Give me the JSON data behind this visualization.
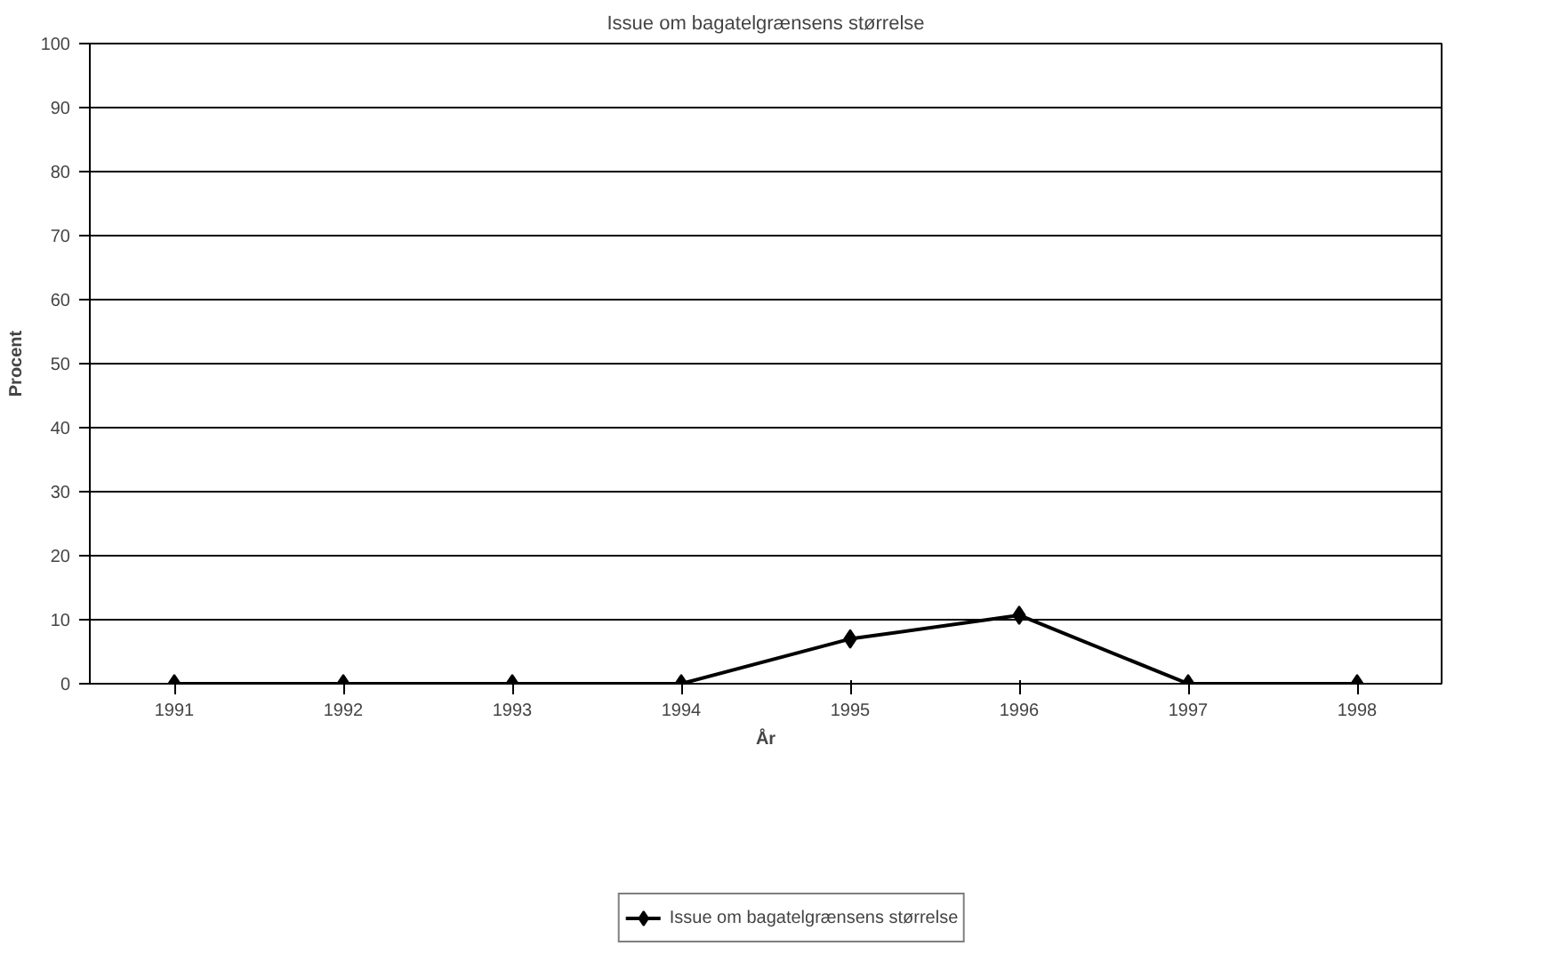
{
  "chart_data": {
    "type": "line",
    "title": "Issue om bagatelgrænsens størrelse",
    "xlabel": "År",
    "ylabel": "Procent",
    "categories": [
      "1991",
      "1992",
      "1993",
      "1994",
      "1995",
      "1996",
      "1997",
      "1998"
    ],
    "series": [
      {
        "name": "Issue om bagatelgrænsens størrelse",
        "color": "#000000",
        "values": [
          0,
          0,
          0,
          0,
          7,
          10.7,
          0,
          0
        ]
      }
    ],
    "ylim": [
      0,
      100
    ],
    "yticks": [
      0,
      10,
      20,
      30,
      40,
      50,
      60,
      70,
      80,
      90,
      100
    ],
    "grid": "y",
    "legend": "bottom",
    "marker": "diamond",
    "line_style": "solid"
  }
}
